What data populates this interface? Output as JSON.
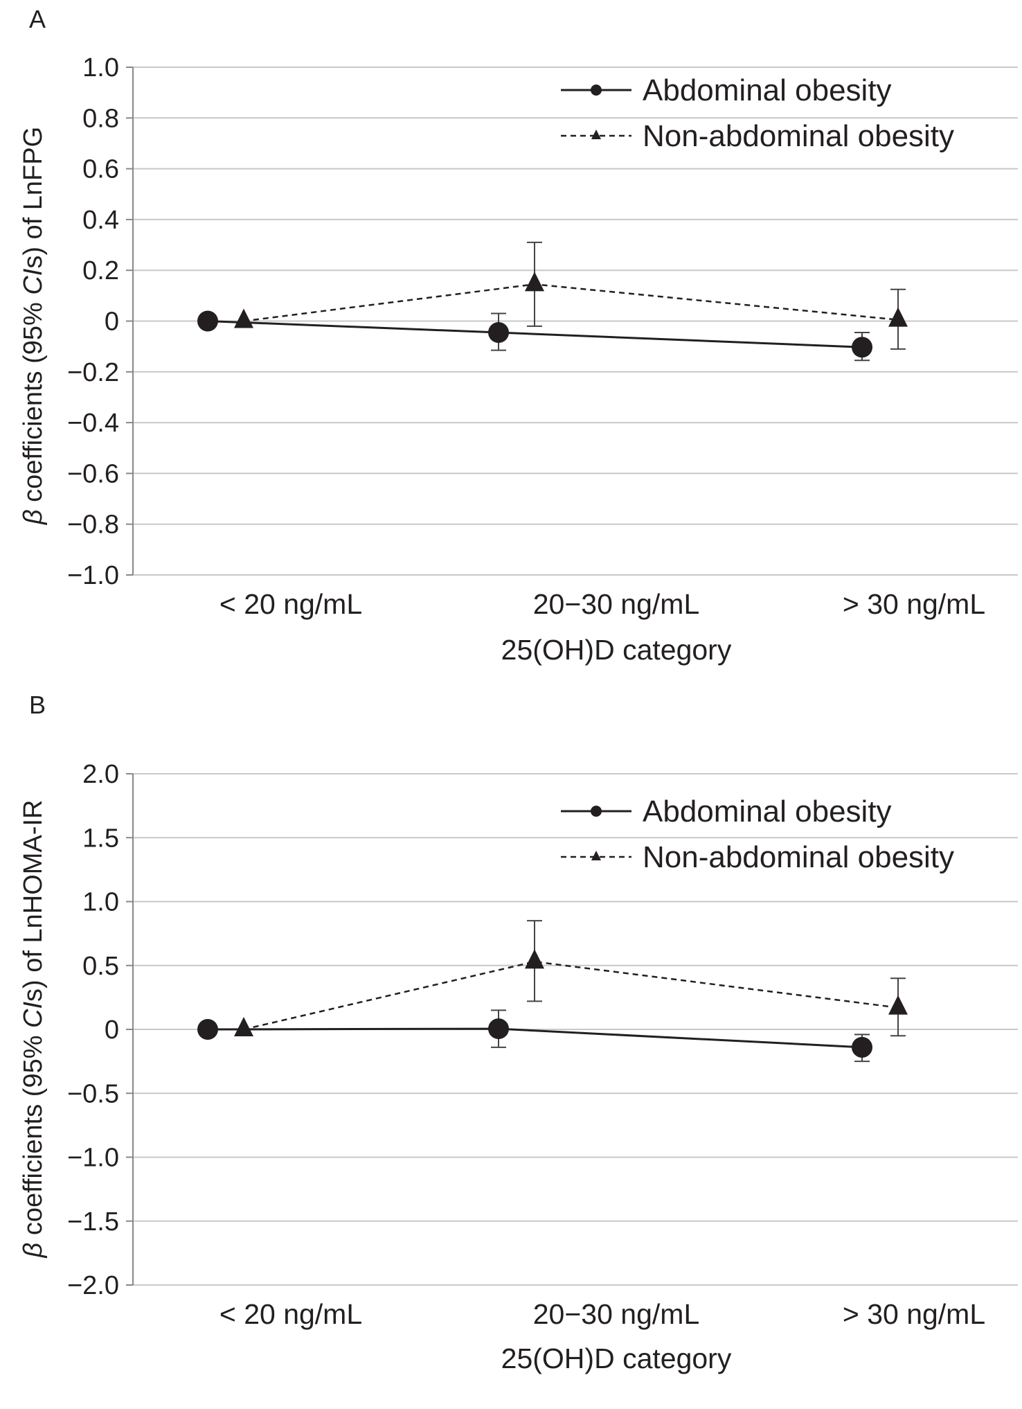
{
  "chart_data": [
    {
      "type": "line",
      "panel": "A",
      "xlabel": "25(OH)D category",
      "ylabel": {
        "greek": "β",
        "pre": " coefficients (95% ",
        "ital": "CI",
        "post": "s) of LnFPG"
      },
      "categories": [
        "< 20 ng/mL",
        "20−30 ng/mL",
        "> 30 ng/mL"
      ],
      "ylim": [
        -1.0,
        1.0
      ],
      "yticks": [
        1.0,
        0.8,
        0.6,
        0.4,
        0.2,
        0,
        -0.2,
        -0.4,
        -0.6,
        -0.8,
        -1.0
      ],
      "ytick_labels": [
        "1.0",
        "0.8",
        "0.6",
        "0.4",
        "0.2",
        "0",
        "−0.2",
        "−0.4",
        "−0.6",
        "−0.8",
        "−1.0"
      ],
      "grid": true,
      "legend_position": "top-right",
      "series": [
        {
          "name": "Abdominal obesity",
          "marker": "circle",
          "line": "solid",
          "values": [
            0,
            -0.045,
            -0.103
          ],
          "ci_low": [
            null,
            -0.115,
            -0.155
          ],
          "ci_high": [
            null,
            0.03,
            -0.045
          ]
        },
        {
          "name": "Non-abdominal obesity",
          "marker": "triangle",
          "line": "dashed",
          "values": [
            0,
            0.145,
            0.005
          ],
          "ci_low": [
            null,
            -0.02,
            -0.11
          ],
          "ci_high": [
            null,
            0.31,
            0.125
          ]
        }
      ]
    },
    {
      "type": "line",
      "panel": "B",
      "xlabel": "25(OH)D category",
      "ylabel": {
        "greek": "β",
        "pre": " coefficients (95% ",
        "ital": "CI",
        "post": "s) of LnHOMA-IR"
      },
      "categories": [
        "< 20 ng/mL",
        "20−30 ng/mL",
        "> 30 ng/mL"
      ],
      "ylim": [
        -2.0,
        2.0
      ],
      "yticks": [
        2.0,
        1.5,
        1.0,
        0.5,
        0,
        -0.5,
        -1.0,
        -1.5,
        -2.0
      ],
      "ytick_labels": [
        "2.0",
        "1.5",
        "1.0",
        "0.5",
        "0",
        "−0.5",
        "−1.0",
        "−1.5",
        "−2.0"
      ],
      "grid": true,
      "legend_position": "top-right",
      "series": [
        {
          "name": "Abdominal obesity",
          "marker": "circle",
          "line": "solid",
          "values": [
            0,
            0.005,
            -0.14
          ],
          "ci_low": [
            null,
            -0.14,
            -0.25
          ],
          "ci_high": [
            null,
            0.15,
            -0.04
          ]
        },
        {
          "name": "Non-abdominal obesity",
          "marker": "triangle",
          "line": "dashed",
          "values": [
            0,
            0.53,
            0.17
          ],
          "ci_low": [
            null,
            0.22,
            -0.05
          ],
          "ci_high": [
            null,
            0.85,
            0.4
          ]
        }
      ]
    }
  ]
}
